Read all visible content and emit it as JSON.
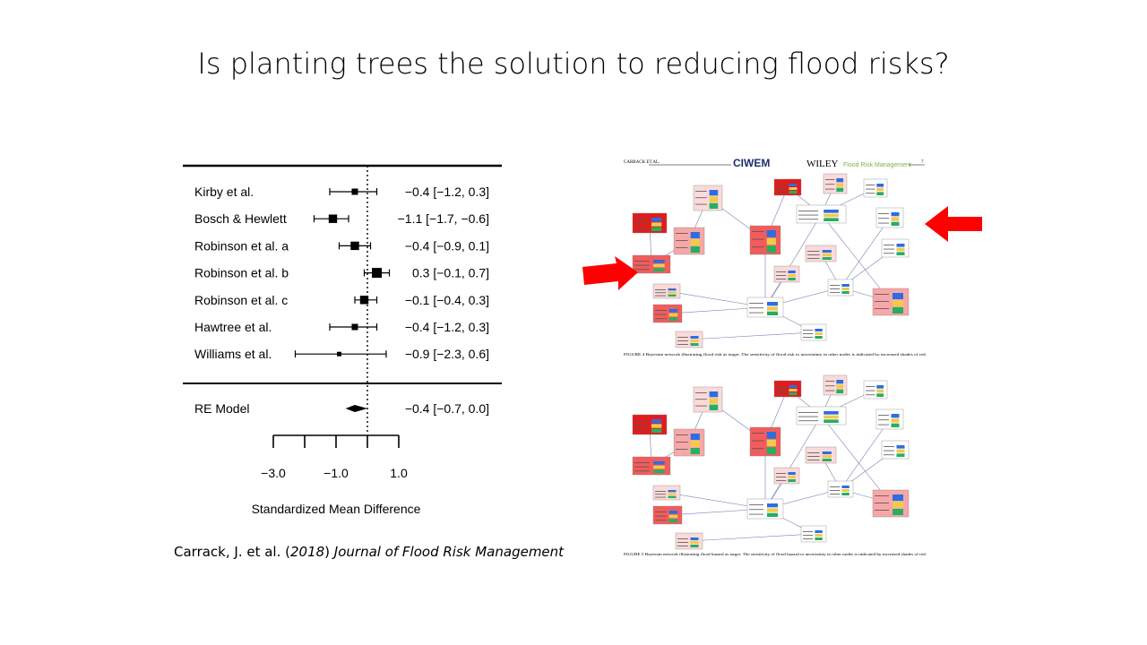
{
  "slide": {
    "title": "Is planting trees the solution to reducing flood risks?",
    "citation": {
      "authors": "Carrack, J. et al. (",
      "year": "2018",
      "after_year": ") ",
      "journal": "Journal of Flood Risk Management"
    }
  },
  "chart_data": {
    "type": "forest",
    "xlabel": "Standardized Mean Difference",
    "xticks": [
      -3.0,
      -1.0,
      1.0
    ],
    "xtick_labels": [
      "−3.0",
      "−1.0",
      "1.0"
    ],
    "xlim": [
      -3.0,
      1.0
    ],
    "reference_line": 0,
    "studies": [
      {
        "name": "Kirby et al.",
        "estimate": -0.4,
        "lower": -1.2,
        "upper": 0.3,
        "label": "−0.4 [−1.2,  0.3]",
        "weight": 0.5
      },
      {
        "name": "Bosch & Hewlett",
        "estimate": -1.1,
        "lower": -1.7,
        "upper": -0.6,
        "label": "−1.1 [−1.7, −0.6]",
        "weight": 0.8
      },
      {
        "name": "Robinson et al. a",
        "estimate": -0.4,
        "lower": -0.9,
        "upper": 0.1,
        "label": "−0.4 [−0.9,  0.1]",
        "weight": 0.8
      },
      {
        "name": "Robinson et al. b",
        "estimate": 0.3,
        "lower": -0.1,
        "upper": 0.7,
        "label": "0.3 [−0.1,  0.7]",
        "weight": 1.0
      },
      {
        "name": "Robinson et al. c",
        "estimate": -0.1,
        "lower": -0.4,
        "upper": 0.3,
        "label": "−0.1 [−0.4,  0.3]",
        "weight": 0.8
      },
      {
        "name": "Hawtree et al.",
        "estimate": -0.4,
        "lower": -1.2,
        "upper": 0.3,
        "label": "−0.4 [−1.2,  0.3]",
        "weight": 0.5
      },
      {
        "name": "Williams et al.",
        "estimate": -0.9,
        "lower": -2.3,
        "upper": 0.6,
        "label": "−0.9 [−2.3,  0.6]",
        "weight": 0.25
      }
    ],
    "summary": {
      "name": "RE Model",
      "estimate": -0.4,
      "lower": -0.7,
      "upper": 0.0,
      "label": "−0.4 [−0.7,  0.0]"
    }
  },
  "paper": {
    "header_left": "CARRACK ET AL.",
    "brand": "CIWEM",
    "publisher": "WILEY",
    "journal": "Flood Risk Management",
    "page": "7",
    "fig4_caption": "FIGURE 4   Bayesian network illustrating flood risk as target. The sensitivity of flood risk to uncertainty in other nodes is indicated by increased shades of red.",
    "fig5_caption": "FIGURE 5   Bayesian network illustrating flood hazard as target. The sensitivity of flood hazard to uncertainty in other nodes is indicated by increased shades of red."
  },
  "colors": {
    "arrow": "#ff0000",
    "node_strong": "#f25c5c",
    "node_mid": "#f7a7a7",
    "node_light": "#fbdada"
  }
}
